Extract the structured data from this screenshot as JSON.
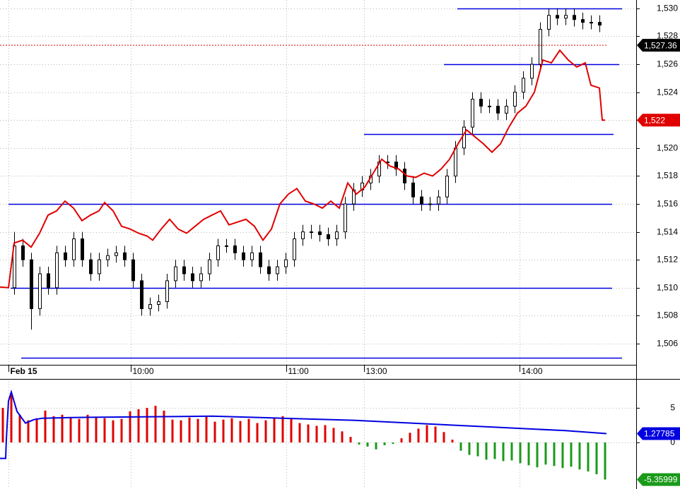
{
  "chart_data": [
    {
      "type": "candlestick",
      "xlim": [
        0,
        225
      ],
      "ylim": [
        1504.48,
        1530.6
      ],
      "xticks": [
        {
          "value": 3,
          "label": "Feb 15"
        },
        {
          "value": 46.25,
          "label": "10:00"
        },
        {
          "value": 101.25,
          "label": "11:00"
        },
        {
          "value": 128.75,
          "label": "13:00"
        },
        {
          "value": 183.75,
          "label": "14:00"
        }
      ],
      "yticks": [
        {
          "value": 1506,
          "label": "1,506"
        },
        {
          "value": 1508,
          "label": "1,508"
        },
        {
          "value": 1510,
          "label": "1,510"
        },
        {
          "value": 1512,
          "label": "1,512"
        },
        {
          "value": 1514,
          "label": "1,514"
        },
        {
          "value": 1516,
          "label": "1,516"
        },
        {
          "value": 1518,
          "label": "1,518"
        },
        {
          "value": 1520,
          "label": "1,520"
        },
        {
          "value": 1522,
          "label": "1,522"
        },
        {
          "value": 1524,
          "label": "1,524"
        },
        {
          "value": 1526,
          "label": "1,526"
        },
        {
          "value": 1528,
          "label": "1,528"
        },
        {
          "value": 1530,
          "label": "1,530"
        }
      ],
      "grid": true,
      "up_color": "#ffffff",
      "down_color": "#000000",
      "x": [
        5,
        8,
        11,
        14,
        17,
        20,
        23,
        26,
        29,
        32,
        35,
        38,
        41,
        44,
        47,
        50,
        53,
        56,
        59,
        62,
        65,
        68,
        71,
        74,
        77,
        80,
        83,
        86,
        89,
        92,
        95,
        98,
        101,
        104,
        107,
        110,
        113,
        116,
        119,
        122,
        125,
        128,
        131,
        134,
        137,
        140,
        143,
        146,
        149,
        152,
        155,
        158,
        161,
        164,
        167,
        170,
        173,
        176,
        179,
        182,
        185,
        188,
        191,
        194,
        197,
        200,
        203,
        206,
        209,
        212
      ],
      "open": [
        1510,
        1513,
        1512,
        1508.5,
        1511,
        1510,
        1512.5,
        1512,
        1513.5,
        1512,
        1511,
        1512,
        1512.3,
        1512.5,
        1512,
        1510.5,
        1508.5,
        1508.8,
        1509,
        1510.5,
        1511.5,
        1511,
        1510.5,
        1511,
        1512,
        1513,
        1513,
        1512.5,
        1512,
        1512.5,
        1511.5,
        1511,
        1511.5,
        1512,
        1513.5,
        1514,
        1514,
        1513.8,
        1513.5,
        1514,
        1516,
        1517,
        1517.5,
        1518,
        1519,
        1519,
        1518.5,
        1517.5,
        1516.5,
        1516,
        1516,
        1516.5,
        1518,
        1520,
        1521.5,
        1523.5,
        1523,
        1523,
        1522.5,
        1523,
        1524,
        1525,
        1526,
        1528.5,
        1529.5,
        1529.3,
        1529.5,
        1529.2,
        1529,
        1529
      ],
      "high": [
        1514,
        1513.5,
        1512.5,
        1511.5,
        1511.5,
        1513,
        1513,
        1514,
        1514,
        1512.5,
        1512.5,
        1512.8,
        1513,
        1513,
        1512.5,
        1511,
        1509.3,
        1509.5,
        1511,
        1512,
        1512,
        1511.5,
        1511.5,
        1512.5,
        1513.5,
        1513.5,
        1513.5,
        1513,
        1513,
        1513,
        1512,
        1512,
        1512.5,
        1514,
        1514.5,
        1514.5,
        1514.5,
        1514.3,
        1514.5,
        1516.5,
        1517.5,
        1518,
        1518.5,
        1519.5,
        1519.5,
        1519.5,
        1519,
        1518,
        1517,
        1516.5,
        1517,
        1518.5,
        1520.5,
        1522,
        1524,
        1524,
        1523.5,
        1523.5,
        1523.5,
        1524.5,
        1525.5,
        1526.5,
        1529,
        1530,
        1530,
        1530,
        1530,
        1529.7,
        1529.5,
        1529.5
      ],
      "low": [
        1509.5,
        1511.5,
        1507,
        1508,
        1509.5,
        1509.5,
        1511.5,
        1511.5,
        1511.5,
        1510.5,
        1510.5,
        1511.5,
        1511.8,
        1511.5,
        1510,
        1508,
        1508,
        1508.3,
        1508.5,
        1510,
        1510.5,
        1510,
        1510,
        1510.5,
        1511.5,
        1512.5,
        1512,
        1511.5,
        1511.5,
        1511,
        1510.5,
        1510.5,
        1511,
        1511.5,
        1513,
        1513.5,
        1513.3,
        1513,
        1513,
        1513.5,
        1515.5,
        1516.5,
        1517,
        1517.5,
        1518.5,
        1518,
        1517,
        1516,
        1515.5,
        1515.5,
        1515.5,
        1516,
        1517.5,
        1519.5,
        1521,
        1522.5,
        1522.5,
        1522,
        1522,
        1522.5,
        1523.5,
        1524.5,
        1525.5,
        1528,
        1528.8,
        1528.8,
        1528.7,
        1528.5,
        1528.5,
        1528.3
      ],
      "close": [
        1513,
        1512,
        1508.5,
        1511,
        1510,
        1512.5,
        1512,
        1513.5,
        1512,
        1511,
        1512,
        1512.3,
        1512.5,
        1512,
        1510.5,
        1508.5,
        1508.8,
        1509,
        1510.5,
        1511.5,
        1511,
        1510.5,
        1511,
        1512,
        1513,
        1513,
        1512.5,
        1512,
        1512.5,
        1511.5,
        1511,
        1511.5,
        1512,
        1513.5,
        1514,
        1514,
        1513.8,
        1513.5,
        1514,
        1516,
        1517,
        1517.5,
        1518,
        1519,
        1519,
        1518.5,
        1517.5,
        1516.5,
        1516,
        1516,
        1516.5,
        1518,
        1520,
        1521.5,
        1523.5,
        1523,
        1523,
        1522.5,
        1523,
        1524,
        1525,
        1526,
        1528.5,
        1529.5,
        1529.3,
        1529.5,
        1529.2,
        1529,
        1529,
        1528.8
      ],
      "overlay": {
        "color": "#e00000",
        "x": [
          0,
          3,
          5,
          8,
          11,
          14,
          17,
          20,
          23,
          26,
          29,
          32,
          35,
          37,
          40,
          43,
          46,
          49,
          52,
          54,
          57,
          60,
          63,
          66,
          69,
          72,
          75,
          78,
          81,
          84,
          87,
          90,
          93,
          96,
          99,
          102,
          105,
          108,
          111,
          114,
          117,
          120,
          123,
          126,
          129,
          132,
          135,
          138,
          141,
          144,
          147,
          150,
          153,
          156,
          159,
          162,
          165,
          168,
          171,
          174,
          177,
          180,
          183,
          186,
          189,
          192,
          195,
          198,
          201,
          204,
          207,
          209,
          212,
          213,
          214
        ],
        "values": [
          1510.05,
          1510,
          1513.2,
          1513.4,
          1512.9,
          1513.9,
          1515.2,
          1515.5,
          1516.2,
          1515.7,
          1514.8,
          1515.2,
          1515.5,
          1516.1,
          1515.5,
          1514.4,
          1514.2,
          1513.9,
          1513.7,
          1513.4,
          1514.2,
          1514.9,
          1514.2,
          1513.9,
          1514.4,
          1514.9,
          1515.2,
          1515.5,
          1514.5,
          1514.7,
          1514.9,
          1514.4,
          1513.4,
          1514.2,
          1516,
          1516.7,
          1517.1,
          1516.2,
          1516,
          1515.7,
          1516.2,
          1515.7,
          1517.5,
          1516.7,
          1517.2,
          1518.2,
          1519.2,
          1518.7,
          1518.5,
          1518,
          1517.9,
          1518.2,
          1518,
          1518.5,
          1519.2,
          1520.3,
          1521.3,
          1520.8,
          1520.3,
          1519.7,
          1520.3,
          1521.5,
          1522.5,
          1523,
          1524,
          1526.3,
          1526.1,
          1527,
          1526.3,
          1525.8,
          1526.1,
          1524.5,
          1524.3,
          1522,
          1522
        ]
      },
      "levels": [
        {
          "value": 1530,
          "x": [
            161.75,
            220
          ]
        },
        {
          "value": 1526,
          "x": [
            157,
            219
          ]
        },
        {
          "value": 1521,
          "x": [
            128.75,
            217
          ]
        },
        {
          "value": 1516,
          "x": [
            3,
            216.5
          ]
        },
        {
          "value": 1510,
          "x": [
            3.75,
            216.5
          ]
        },
        {
          "value": 1505,
          "x": [
            7.5,
            220
          ]
        }
      ],
      "level_color": "#0000e0",
      "markers": [
        {
          "value": 1527.36,
          "label": "1,527.36",
          "color": "#000000",
          "dashed": true
        },
        {
          "value": 1522,
          "label": "1,522",
          "color": "#e00000"
        }
      ]
    },
    {
      "type": "bar",
      "xlim": [
        0,
        225
      ],
      "ylim": [
        -6.73,
        9.18
      ],
      "yticks": [
        0,
        5
      ],
      "grid": true,
      "pos_color": "#e00000",
      "neg_color": "#1a9a1a",
      "x": [
        1,
        4,
        7,
        10,
        13,
        16,
        19,
        22,
        25,
        28,
        31,
        34,
        37,
        40,
        43,
        46,
        49,
        52,
        55,
        58,
        61,
        64,
        67,
        70,
        73,
        76,
        79,
        82,
        85,
        88,
        91,
        94,
        97,
        100,
        103,
        106,
        109,
        112,
        115,
        118,
        121,
        124,
        127,
        130,
        133,
        136,
        139,
        142,
        145,
        148,
        151,
        154,
        157,
        160,
        163,
        166,
        169,
        172,
        175,
        178,
        181,
        184,
        187,
        190,
        193,
        196,
        199,
        202,
        205,
        208,
        211,
        214
      ],
      "values": [
        5.0,
        7.0,
        4.0,
        3.2,
        3.5,
        4.6,
        3.8,
        4.0,
        3.6,
        3.4,
        4.0,
        3.7,
        3.5,
        3.2,
        3.4,
        4.5,
        4.8,
        5.0,
        5.3,
        4.6,
        3.3,
        3.2,
        3.6,
        3.4,
        3.7,
        3.0,
        3.3,
        3.5,
        3.1,
        3.4,
        2.8,
        3.2,
        3.6,
        3.8,
        3.4,
        2.8,
        2.6,
        2.4,
        2.5,
        2.1,
        1.6,
        0.8,
        -0.3,
        -0.6,
        -1.0,
        -0.4,
        -0.2,
        0.6,
        1.4,
        2.0,
        2.5,
        2.3,
        1.5,
        0.4,
        -1.2,
        -1.8,
        -2.0,
        -2.5,
        -2.4,
        -2.7,
        -2.6,
        -3.0,
        -3.3,
        -3.6,
        -3.2,
        -3.4,
        -3.7,
        -3.5,
        -3.9,
        -4.2,
        -4.6,
        -5.35999
      ],
      "line": {
        "color": "#0000e0",
        "x": [
          0,
          2,
          2.25,
          3,
          4,
          6,
          9,
          12,
          15,
          25,
          50,
          75,
          100,
          125,
          150,
          175,
          200,
          214.5
        ],
        "values": [
          -2.3,
          -2.3,
          0.5,
          6,
          7.3,
          4.5,
          2.8,
          3.3,
          3.5,
          3.6,
          3.7,
          3.8,
          3.5,
          3.2,
          2.7,
          2.2,
          1.7,
          1.27785
        ]
      },
      "markers": [
        {
          "value": 1.27785,
          "label": "1.27785",
          "color": "#0000e0"
        },
        {
          "value": -5.35999,
          "label": "-5.35999",
          "color": "#1a9a1a"
        }
      ]
    }
  ]
}
